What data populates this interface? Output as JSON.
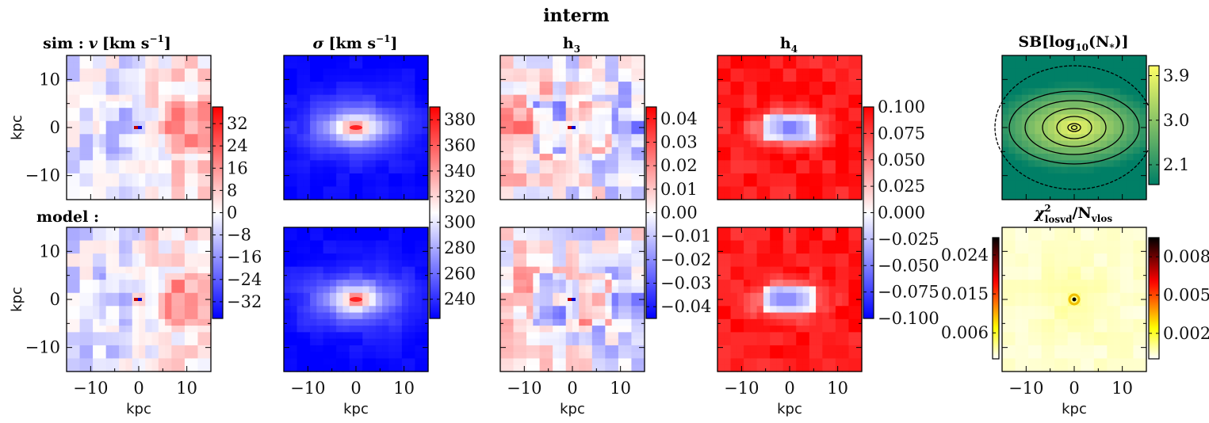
{
  "figure_title": "interm",
  "chart_data": {
    "type": "heatmap",
    "xlabel": "kpc",
    "ylabel": "kpc",
    "xlim": [
      -15,
      15
    ],
    "ylim": [
      -15,
      15
    ],
    "xticks": [
      "−10",
      "0",
      "10"
    ],
    "yticks": [
      "10",
      "0",
      "−10"
    ],
    "row_labels": {
      "sim": "sim :",
      "model": "model :"
    },
    "panels": [
      {
        "key": "v",
        "title_main": "v",
        "title_unit": "[km s",
        "title_sup": "−1",
        "title_close": "]",
        "colormap": "bwr",
        "vlim": [
          -38,
          38
        ],
        "colorbar_ticks": [
          "32",
          "24",
          "16",
          "8",
          "0",
          "−8",
          "−16",
          "−24",
          "−32"
        ],
        "colorbar_values": [
          32,
          24,
          16,
          8,
          0,
          -8,
          -16,
          -24,
          -32
        ]
      },
      {
        "key": "sigma",
        "title_main": "σ",
        "title_unit": "[km s",
        "title_sup": "−1",
        "title_close": "]",
        "colormap": "bwr",
        "vlim": [
          225,
          390
        ],
        "colorbar_ticks": [
          "380",
          "360",
          "340",
          "320",
          "300",
          "280",
          "260",
          "240"
        ],
        "colorbar_values": [
          380,
          360,
          340,
          320,
          300,
          280,
          260,
          240
        ]
      },
      {
        "key": "h3",
        "title_main": "h",
        "title_sub": "3",
        "colormap": "bwr",
        "vlim": [
          -0.045,
          0.045
        ],
        "colorbar_ticks": [
          "0.04",
          "0.03",
          "0.02",
          "0.01",
          "0.00",
          "−0.01",
          "−0.02",
          "−0.03",
          "−0.04"
        ],
        "colorbar_values": [
          0.04,
          0.03,
          0.02,
          0.01,
          0.0,
          -0.01,
          -0.02,
          -0.03,
          -0.04
        ]
      },
      {
        "key": "h4",
        "title_main": "h",
        "title_sub": "4",
        "colormap": "bwr",
        "vlim": [
          -0.1,
          0.1
        ],
        "colorbar_ticks": [
          "0.100",
          "0.075",
          "0.050",
          "0.025",
          "0.000",
          "−0.025",
          "−0.050",
          "−0.075",
          "−0.100"
        ],
        "colorbar_values": [
          0.1,
          0.075,
          0.05,
          0.025,
          0.0,
          -0.025,
          -0.05,
          -0.075,
          -0.1
        ]
      },
      {
        "key": "sb",
        "title_main": "SB[log",
        "title_sub": "10",
        "title_rest": "(N",
        "title_star": "*",
        "title_close": ")]",
        "colormap": "summer",
        "vlim": [
          1.7,
          4.1
        ],
        "colorbar_ticks": [
          "3.9",
          "3.0",
          "2.1"
        ],
        "colorbar_values": [
          3.9,
          3.0,
          2.1
        ]
      },
      {
        "key": "chi2",
        "title_main": "χ",
        "title_sup": "2",
        "title_sub": "losvd",
        "title_rest": "/N",
        "title_sub2": "vlos",
        "colormap": "hot_r",
        "left_colorbar_ticks": [
          "0.024",
          "0.015",
          "0.006"
        ],
        "left_colorbar_values": [
          0.024,
          0.015,
          0.006
        ],
        "left_vlim": [
          0.0,
          0.028
        ],
        "colorbar_ticks": [
          "0.008",
          "0.005",
          "0.002"
        ],
        "colorbar_values": [
          0.008,
          0.005,
          0.002
        ],
        "vlim": [
          0.0,
          0.0095
        ]
      }
    ]
  }
}
